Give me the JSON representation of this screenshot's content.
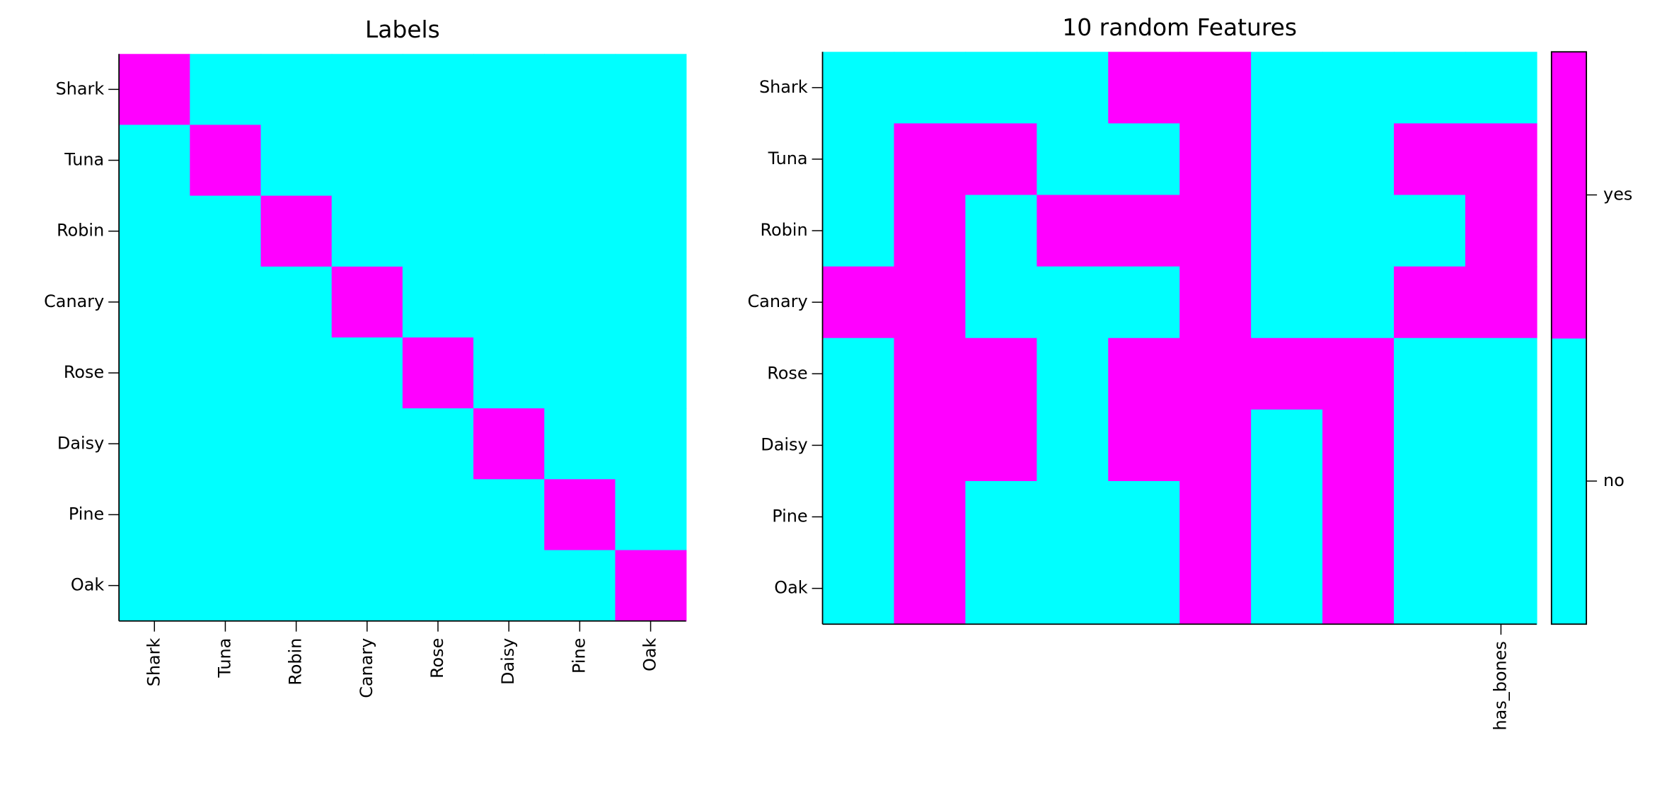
{
  "chart_data": [
    {
      "type": "heatmap",
      "title": "Labels",
      "x_categories": [
        "Shark",
        "Tuna",
        "Robin",
        "Canary",
        "Rose",
        "Daisy",
        "Pine",
        "Oak"
      ],
      "y_categories": [
        "Shark",
        "Tuna",
        "Robin",
        "Canary",
        "Rose",
        "Daisy",
        "Pine",
        "Oak"
      ],
      "colors": [
        "#00ffff",
        "#ff00ff"
      ],
      "clim": [
        0,
        1
      ],
      "values": [
        [
          1,
          0,
          0,
          0,
          0,
          0,
          0,
          0
        ],
        [
          0,
          1,
          0,
          0,
          0,
          0,
          0,
          0
        ],
        [
          0,
          0,
          1,
          0,
          0,
          0,
          0,
          0
        ],
        [
          0,
          0,
          0,
          1,
          0,
          0,
          0,
          0
        ],
        [
          0,
          0,
          0,
          0,
          1,
          0,
          0,
          0
        ],
        [
          0,
          0,
          0,
          0,
          0,
          1,
          0,
          0
        ],
        [
          0,
          0,
          0,
          0,
          0,
          0,
          1,
          0
        ],
        [
          0,
          0,
          0,
          0,
          0,
          0,
          0,
          1
        ]
      ]
    },
    {
      "type": "heatmap",
      "title": "10 random Features",
      "x_categories": [
        null,
        null,
        null,
        null,
        null,
        null,
        null,
        null,
        null,
        "has_bones"
      ],
      "y_categories": [
        "Shark",
        "Tuna",
        "Robin",
        "Canary",
        "Rose",
        "Daisy",
        "Pine",
        "Oak"
      ],
      "colors": [
        "#00ffff",
        "#ff00ff"
      ],
      "clim": [
        0,
        1
      ],
      "values": [
        [
          0,
          0,
          0,
          0,
          1,
          1,
          0,
          0,
          0,
          0
        ],
        [
          0,
          1,
          1,
          0,
          0,
          1,
          0,
          0,
          1,
          1
        ],
        [
          0,
          1,
          0,
          1,
          1,
          1,
          0,
          0,
          0,
          1
        ],
        [
          1,
          1,
          0,
          0,
          0,
          1,
          0,
          0,
          1,
          1
        ],
        [
          0,
          1,
          1,
          0,
          1,
          1,
          1,
          1,
          0,
          0
        ],
        [
          0,
          1,
          1,
          0,
          1,
          1,
          0,
          1,
          0,
          0
        ],
        [
          0,
          1,
          0,
          0,
          0,
          1,
          0,
          1,
          0,
          0
        ],
        [
          0,
          1,
          0,
          0,
          0,
          1,
          0,
          1,
          0,
          0
        ]
      ],
      "colorbar_ticks": [
        {
          "value": 0.25,
          "label": "no"
        },
        {
          "value": 0.75,
          "label": "yes"
        }
      ]
    }
  ]
}
